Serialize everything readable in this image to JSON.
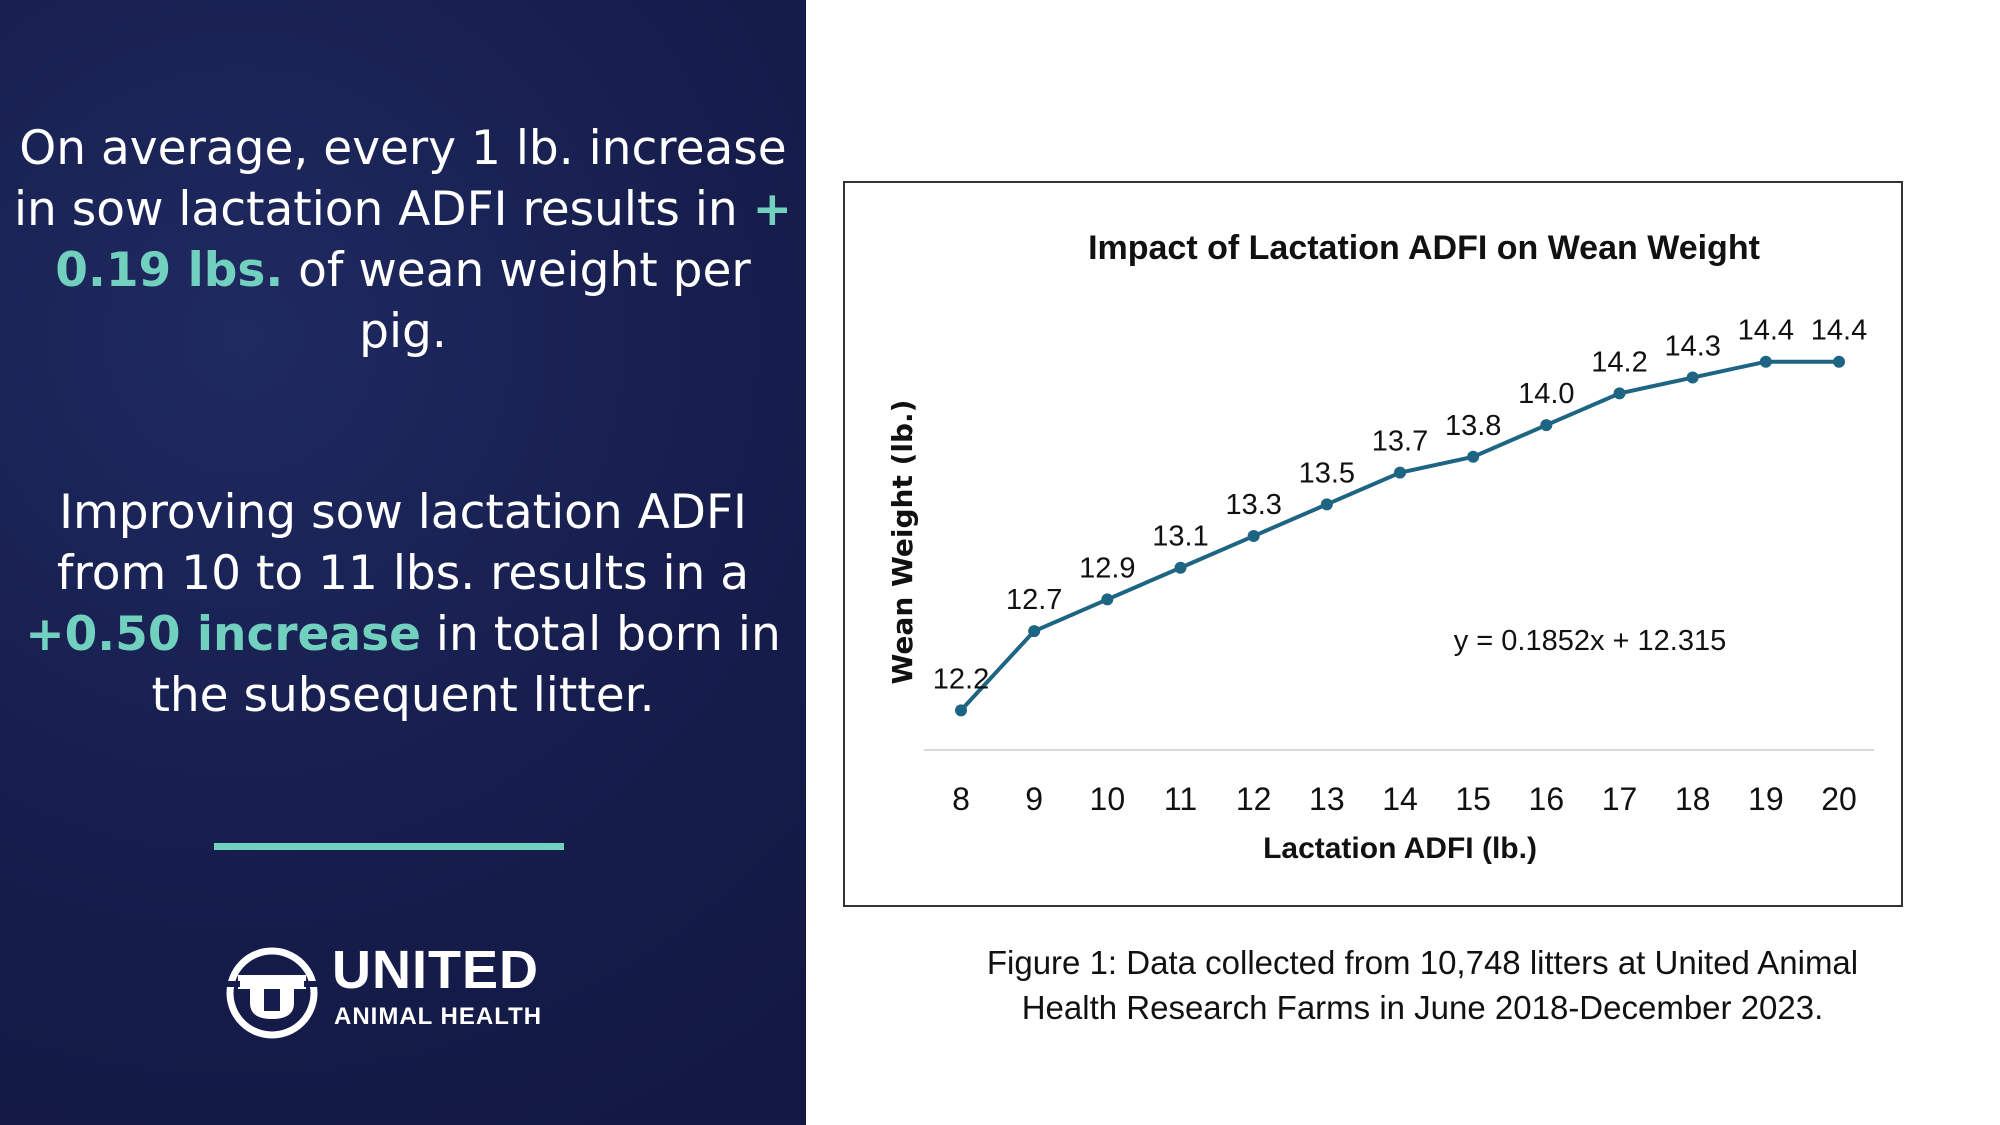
{
  "left_panel": {
    "p1_before": "On average, every 1 lb. increase in sow lactation ADFI results in ",
    "p1_highlight": "+ 0.19 lbs.",
    "p1_after": " of wean weight per pig.",
    "p2_before": "Improving sow lactation ADFI from 10 to 11 lbs. results in a ",
    "p2_highlight": "+0.50 increase",
    "p2_after": " in total born in the subsequent litter.",
    "logo_word": "UNITED",
    "logo_sub": "ANIMAL HEALTH",
    "logo_mark": "®"
  },
  "caption": {
    "line1": "Figure 1: Data collected from 10,748 litters at United Animal",
    "line2": "Health Research Farms in June 2018-December 2023."
  },
  "colors": {
    "background": "#161d4c",
    "accent": "#72d0be",
    "line": "#1e6583"
  },
  "chart_data": {
    "type": "line",
    "title": "Impact of Lactation ADFI on Wean Weight",
    "xlabel": "Lactation ADFI (lb.)",
    "ylabel": "Wean Weight (lb.)",
    "x": [
      8,
      9,
      10,
      11,
      12,
      13,
      14,
      15,
      16,
      17,
      18,
      19,
      20
    ],
    "values": [
      12.2,
      12.7,
      12.9,
      13.1,
      13.3,
      13.5,
      13.7,
      13.8,
      14.0,
      14.2,
      14.3,
      14.4,
      14.4
    ],
    "labels": [
      "12.2",
      "12.7",
      "12.9",
      "13.1",
      "13.3",
      "13.5",
      "13.7",
      "13.8",
      "14.0",
      "14.2",
      "14.3",
      "14.4",
      "14.4"
    ],
    "ylim": [
      11.95,
      14.6
    ],
    "trendline_equation": "y = 0.1852x + 12.315",
    "grid": false,
    "legend": "none"
  }
}
